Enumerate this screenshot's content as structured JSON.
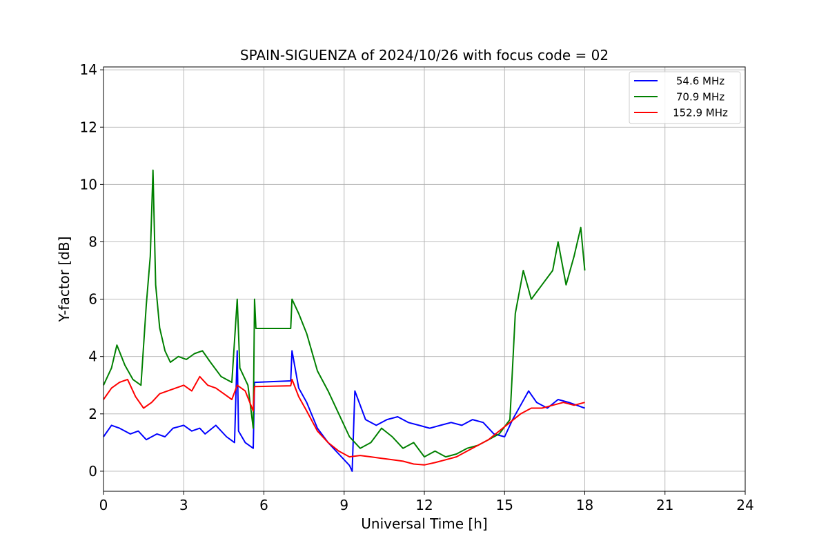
{
  "chart_data": {
    "type": "line",
    "title": "SPAIN-SIGUENZA of 2024/10/26 with focus code = 02",
    "xlabel": "Universal Time [h]",
    "ylabel": "Y-factor [dB]",
    "xlim": [
      0,
      24
    ],
    "ylim": [
      -0.7,
      14.1
    ],
    "xticks": [
      0,
      3,
      6,
      9,
      12,
      15,
      18,
      21,
      24
    ],
    "yticks": [
      0,
      2,
      4,
      6,
      8,
      10,
      12,
      14
    ],
    "grid": true,
    "legend_position": "top-right",
    "series": [
      {
        "name": "54.6 MHz",
        "color": "#0000ff",
        "points": [
          [
            0,
            1.2
          ],
          [
            0.3,
            1.6
          ],
          [
            0.6,
            1.5
          ],
          [
            1,
            1.3
          ],
          [
            1.3,
            1.4
          ],
          [
            1.6,
            1.1
          ],
          [
            2,
            1.3
          ],
          [
            2.3,
            1.2
          ],
          [
            2.6,
            1.5
          ],
          [
            3,
            1.6
          ],
          [
            3.3,
            1.4
          ],
          [
            3.6,
            1.5
          ],
          [
            3.8,
            1.3
          ],
          [
            4.2,
            1.6
          ],
          [
            4.6,
            1.2
          ],
          [
            4.9,
            1.0
          ],
          [
            5.0,
            4.2
          ],
          [
            5.05,
            1.4
          ],
          [
            5.3,
            1.0
          ],
          [
            5.6,
            0.8
          ],
          [
            5.65,
            3.1
          ],
          [
            7.0,
            3.15
          ],
          [
            7.05,
            4.2
          ],
          [
            7.3,
            2.9
          ],
          [
            7.6,
            2.4
          ],
          [
            8.0,
            1.5
          ],
          [
            8.4,
            1.0
          ],
          [
            8.8,
            0.6
          ],
          [
            9.2,
            0.2
          ],
          [
            9.3,
            0.0
          ],
          [
            9.4,
            2.8
          ],
          [
            9.8,
            1.8
          ],
          [
            10.2,
            1.6
          ],
          [
            10.6,
            1.8
          ],
          [
            11.0,
            1.9
          ],
          [
            11.4,
            1.7
          ],
          [
            11.8,
            1.6
          ],
          [
            12.2,
            1.5
          ],
          [
            12.6,
            1.6
          ],
          [
            13.0,
            1.7
          ],
          [
            13.4,
            1.6
          ],
          [
            13.8,
            1.8
          ],
          [
            14.2,
            1.7
          ],
          [
            14.6,
            1.3
          ],
          [
            15.0,
            1.2
          ],
          [
            15.3,
            1.8
          ],
          [
            15.6,
            2.3
          ],
          [
            15.9,
            2.8
          ],
          [
            16.2,
            2.4
          ],
          [
            16.6,
            2.2
          ],
          [
            17.0,
            2.5
          ],
          [
            17.4,
            2.4
          ],
          [
            17.7,
            2.3
          ],
          [
            18.0,
            2.2
          ]
        ]
      },
      {
        "name": "70.9 MHz",
        "color": "#008000",
        "points": [
          [
            0,
            3.0
          ],
          [
            0.3,
            3.6
          ],
          [
            0.5,
            4.4
          ],
          [
            0.8,
            3.7
          ],
          [
            1.1,
            3.2
          ],
          [
            1.4,
            3.0
          ],
          [
            1.6,
            5.8
          ],
          [
            1.75,
            7.5
          ],
          [
            1.85,
            10.5
          ],
          [
            1.95,
            6.5
          ],
          [
            2.1,
            5.0
          ],
          [
            2.3,
            4.2
          ],
          [
            2.5,
            3.8
          ],
          [
            2.8,
            4.0
          ],
          [
            3.1,
            3.9
          ],
          [
            3.4,
            4.1
          ],
          [
            3.7,
            4.2
          ],
          [
            4.0,
            3.8
          ],
          [
            4.4,
            3.3
          ],
          [
            4.8,
            3.1
          ],
          [
            5.0,
            6.0
          ],
          [
            5.1,
            3.6
          ],
          [
            5.4,
            3.0
          ],
          [
            5.6,
            1.5
          ],
          [
            5.65,
            6.0
          ],
          [
            5.7,
            4.98
          ],
          [
            7.0,
            4.98
          ],
          [
            7.05,
            6.0
          ],
          [
            7.3,
            5.5
          ],
          [
            7.6,
            4.8
          ],
          [
            8.0,
            3.5
          ],
          [
            8.4,
            2.8
          ],
          [
            8.8,
            2.0
          ],
          [
            9.2,
            1.2
          ],
          [
            9.6,
            0.8
          ],
          [
            10.0,
            1.0
          ],
          [
            10.4,
            1.5
          ],
          [
            10.8,
            1.2
          ],
          [
            11.2,
            0.8
          ],
          [
            11.6,
            1.0
          ],
          [
            12.0,
            0.5
          ],
          [
            12.4,
            0.7
          ],
          [
            12.8,
            0.5
          ],
          [
            13.2,
            0.6
          ],
          [
            13.6,
            0.8
          ],
          [
            14.0,
            0.9
          ],
          [
            14.4,
            1.1
          ],
          [
            14.8,
            1.3
          ],
          [
            15.2,
            1.8
          ],
          [
            15.4,
            5.5
          ],
          [
            15.7,
            7.0
          ],
          [
            16.0,
            6.0
          ],
          [
            16.4,
            6.5
          ],
          [
            16.8,
            7.0
          ],
          [
            17.0,
            8.0
          ],
          [
            17.3,
            6.5
          ],
          [
            17.6,
            7.5
          ],
          [
            17.85,
            8.5
          ],
          [
            18.0,
            7.0
          ]
        ]
      },
      {
        "name": "152.9 MHz",
        "color": "#ff0000",
        "points": [
          [
            0,
            2.5
          ],
          [
            0.3,
            2.9
          ],
          [
            0.6,
            3.1
          ],
          [
            0.9,
            3.2
          ],
          [
            1.2,
            2.6
          ],
          [
            1.5,
            2.2
          ],
          [
            1.8,
            2.4
          ],
          [
            2.1,
            2.7
          ],
          [
            2.4,
            2.8
          ],
          [
            2.7,
            2.9
          ],
          [
            3.0,
            3.0
          ],
          [
            3.3,
            2.8
          ],
          [
            3.6,
            3.3
          ],
          [
            3.9,
            3.0
          ],
          [
            4.2,
            2.9
          ],
          [
            4.5,
            2.7
          ],
          [
            4.8,
            2.5
          ],
          [
            5.0,
            3.0
          ],
          [
            5.3,
            2.8
          ],
          [
            5.6,
            2.1
          ],
          [
            5.65,
            2.95
          ],
          [
            7.0,
            2.98
          ],
          [
            7.05,
            3.2
          ],
          [
            7.3,
            2.6
          ],
          [
            7.6,
            2.1
          ],
          [
            8.0,
            1.4
          ],
          [
            8.4,
            1.0
          ],
          [
            8.8,
            0.7
          ],
          [
            9.2,
            0.5
          ],
          [
            9.6,
            0.55
          ],
          [
            10.0,
            0.5
          ],
          [
            10.4,
            0.45
          ],
          [
            10.8,
            0.4
          ],
          [
            11.2,
            0.35
          ],
          [
            11.6,
            0.25
          ],
          [
            12.0,
            0.22
          ],
          [
            12.4,
            0.3
          ],
          [
            12.8,
            0.4
          ],
          [
            13.2,
            0.5
          ],
          [
            13.6,
            0.7
          ],
          [
            14.0,
            0.9
          ],
          [
            14.4,
            1.1
          ],
          [
            14.8,
            1.4
          ],
          [
            15.2,
            1.7
          ],
          [
            15.6,
            2.0
          ],
          [
            16.0,
            2.2
          ],
          [
            16.4,
            2.2
          ],
          [
            16.8,
            2.3
          ],
          [
            17.2,
            2.4
          ],
          [
            17.6,
            2.3
          ],
          [
            18.0,
            2.4
          ]
        ]
      }
    ]
  }
}
